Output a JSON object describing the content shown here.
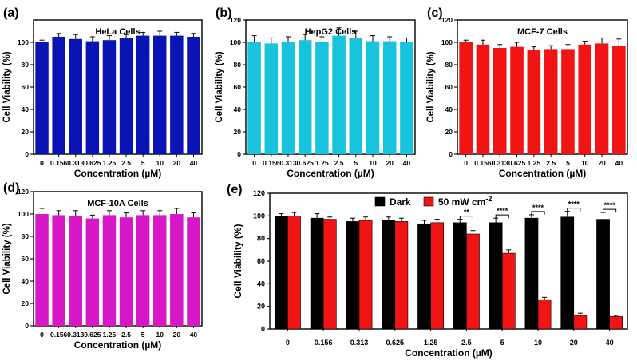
{
  "chart_data": [
    {
      "panel_label": "(a)",
      "type": "bar",
      "title": "HeLa Cells",
      "color": "#0a14b4",
      "xlabel": "Concentration (µM)",
      "ylabel": "Cell Viability (%)",
      "ylim": [
        0,
        120
      ],
      "yticks": [
        0,
        20,
        40,
        60,
        80,
        100
      ],
      "categories": [
        "0",
        "0.156",
        "0.313",
        "0.625",
        "1.25",
        "2.5",
        "5",
        "10",
        "20",
        "40"
      ],
      "values": [
        100,
        105,
        103,
        101,
        102,
        104,
        106,
        106,
        106,
        105
      ],
      "errors": [
        2,
        3,
        4,
        4,
        4,
        3,
        3,
        4,
        3,
        3
      ]
    },
    {
      "panel_label": "(b)",
      "type": "bar",
      "title": "HepG2 Cells",
      "color": "#17c3dd",
      "xlabel": "Concentration (µM)",
      "ylabel": "Cell Viability (%)",
      "ylim": [
        0,
        120
      ],
      "yticks": [
        0,
        20,
        40,
        60,
        80,
        100,
        120
      ],
      "categories": [
        "0",
        "0.156",
        "0.313",
        "0.625",
        "1.25",
        "2.5",
        "5",
        "10",
        "20",
        "40"
      ],
      "values": [
        100,
        99,
        100,
        102,
        100,
        106,
        104,
        101,
        101,
        100
      ],
      "errors": [
        6,
        5,
        5,
        5,
        5,
        7,
        6,
        5,
        4,
        4
      ]
    },
    {
      "panel_label": "(c)",
      "type": "bar",
      "title": "MCF-7 Cells",
      "color": "#f01414",
      "xlabel": "Concentration (µM)",
      "ylabel": "Cell Viability (%)",
      "ylim": [
        0,
        120
      ],
      "yticks": [
        0,
        20,
        40,
        60,
        80,
        100,
        120
      ],
      "categories": [
        "0",
        "0.156",
        "0.313",
        "0.625",
        "1.25",
        "2.5",
        "5",
        "10",
        "20",
        "40"
      ],
      "values": [
        100,
        98,
        95,
        96,
        93,
        94,
        94,
        98,
        99,
        97
      ],
      "errors": [
        2,
        4,
        3,
        4,
        3,
        3,
        4,
        3,
        5,
        6
      ]
    },
    {
      "panel_label": "(d)",
      "type": "bar",
      "title": "MCF-10A Cells",
      "color": "#d817c8",
      "xlabel": "Concentration (µM)",
      "ylabel": "Cell Viability (%)",
      "ylim": [
        0,
        120
      ],
      "yticks": [
        0,
        20,
        40,
        60,
        80,
        100,
        120
      ],
      "categories": [
        "0",
        "0.156",
        "0.313",
        "0.625",
        "1.25",
        "2.5",
        "5",
        "10",
        "20",
        "40"
      ],
      "values": [
        100,
        99,
        98,
        96,
        99,
        97,
        99,
        99,
        100,
        97
      ],
      "errors": [
        5,
        4,
        5,
        3,
        4,
        4,
        4,
        4,
        5,
        4
      ]
    },
    {
      "panel_label": "(e)",
      "type": "bar",
      "title": "",
      "xlabel": "Concentration (µM)",
      "ylabel": "Cell Viability (%)",
      "ylim": [
        0,
        120
      ],
      "yticks": [
        0,
        20,
        40,
        60,
        80,
        100,
        120
      ],
      "categories": [
        "0",
        "0.156",
        "0.313",
        "0.625",
        "1.25",
        "2.5",
        "5",
        "10",
        "20",
        "40"
      ],
      "legend": {
        "position": "top"
      },
      "series": [
        {
          "name": "Dark",
          "color": "#000000",
          "values": [
            100,
            98,
            95,
            96,
            93,
            94,
            94,
            98,
            99,
            97
          ],
          "errors": [
            2,
            4,
            3,
            3,
            3,
            3,
            4,
            3,
            5,
            6
          ]
        },
        {
          "name": "50 mW cm",
          "name_superscript": "-2",
          "color": "#f01414",
          "values": [
            100,
            97,
            96,
            95,
            94,
            84,
            67,
            26,
            12,
            11
          ],
          "errors": [
            3,
            2,
            3,
            3,
            3,
            3,
            3,
            2,
            2,
            1
          ]
        }
      ],
      "significance": [
        {
          "category": "2.5",
          "label": "**"
        },
        {
          "category": "5",
          "label": "****"
        },
        {
          "category": "10",
          "label": "****"
        },
        {
          "category": "20",
          "label": "****"
        },
        {
          "category": "40",
          "label": "****"
        }
      ]
    }
  ]
}
